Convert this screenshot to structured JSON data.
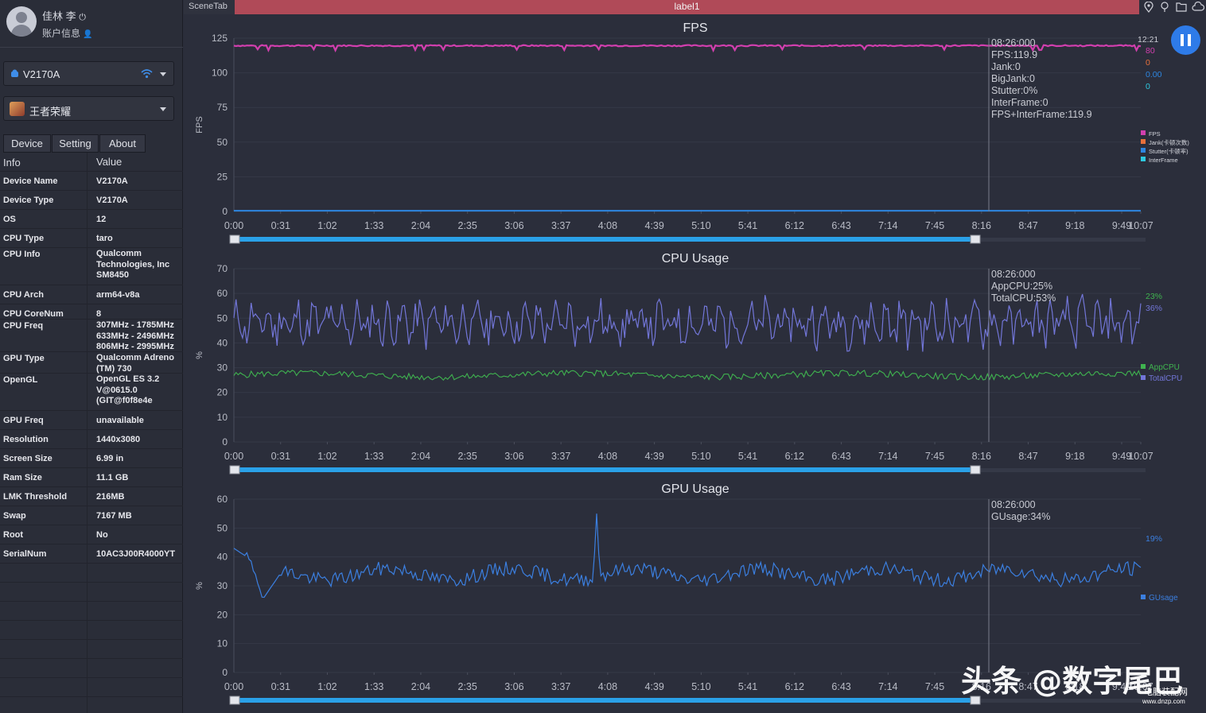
{
  "user": {
    "name": "佳林 李",
    "account_label": "账户信息"
  },
  "device_select": {
    "value": "V2170A"
  },
  "app_select": {
    "value": "王者荣耀"
  },
  "tabs": [
    "Device",
    "Setting",
    "About"
  ],
  "info_table": {
    "headers": [
      "Info",
      "Value"
    ],
    "rows": [
      {
        "k": "Device Name",
        "v": "V2170A"
      },
      {
        "k": "Device Type",
        "v": "V2170A"
      },
      {
        "k": "OS",
        "v": "12"
      },
      {
        "k": "CPU Type",
        "v": "taro"
      },
      {
        "k": "CPU Info",
        "v": "Qualcomm\nTechnologies, Inc\nSM8450"
      },
      {
        "k": "CPU Arch",
        "v": "arm64-v8a"
      },
      {
        "k": "CPU CoreNum",
        "v": "8"
      },
      {
        "k": "CPU Freq",
        "v": "307MHz - 1785MHz\n633MHz - 2496MHz\n806MHz - 2995MHz"
      },
      {
        "k": "GPU Type",
        "v": "Qualcomm Adreno\n(TM) 730"
      },
      {
        "k": "OpenGL",
        "v": "OpenGL ES 3.2\nV@0615.0\n(GIT@f0f8e4e"
      },
      {
        "k": "GPU Freq",
        "v": "unavailable"
      },
      {
        "k": "Resolution",
        "v": "1440x3080"
      },
      {
        "k": "Screen Size",
        "v": "6.99 in"
      },
      {
        "k": "Ram Size",
        "v": "11.1 GB"
      },
      {
        "k": "LMK Threshold",
        "v": "216MB"
      },
      {
        "k": "Swap",
        "v": "7167 MB"
      },
      {
        "k": "Root",
        "v": "No"
      },
      {
        "k": "SerialNum",
        "v": "10AC3J00R4000YT"
      }
    ]
  },
  "topbar": {
    "scene_tab": "SceneTab",
    "label": "label1"
  },
  "colors": {
    "fps": "#d23fae",
    "jank": "#e8703a",
    "stutter": "#2e86e0",
    "interframe": "#2ec9e0",
    "app_cpu": "#3fb34f",
    "total_cpu": "#7276d8",
    "gpu": "#3b7fe0",
    "bg": "#2b2e3b",
    "accent": "#2e7be8"
  },
  "x_ticks": [
    "0:00",
    "0:31",
    "1:02",
    "1:33",
    "2:04",
    "2:35",
    "3:06",
    "3:37",
    "4:08",
    "4:39",
    "5:10",
    "5:41",
    "6:12",
    "6:43",
    "7:14",
    "7:45",
    "8:16",
    "8:47",
    "9:18",
    "9:49",
    "10:07"
  ],
  "cursor_time": "08:26:000",
  "charts": {
    "fps": {
      "title": "FPS",
      "ylabel": "FPS",
      "annotation": "08:26:000\nFPS:119.9\nJank:0\nBigJank:0\nStutter:0%\nInterFrame:0\nFPS+InterFrame:119.9",
      "right_values": [
        "80",
        "0",
        "0.00",
        "0"
      ],
      "time_label": "12:21",
      "legend": [
        "FPS",
        "Jank(卡顿次数)",
        "Stutter(卡顿率)",
        "InterFrame"
      ]
    },
    "cpu": {
      "title": "CPU Usage",
      "ylabel": "%",
      "annotation": "08:26:000\nAppCPU:25%\nTotalCPU:53%",
      "right_values": [
        "23%",
        "36%"
      ],
      "legend": [
        "AppCPU",
        "TotalCPU"
      ]
    },
    "gpu": {
      "title": "GPU Usage",
      "ylabel": "%",
      "annotation": "08:26:000\nGUsage:34%",
      "right_values": [
        "19%"
      ],
      "legend": [
        "GUsage"
      ]
    }
  },
  "chart_data": [
    {
      "type": "line",
      "title": "FPS",
      "ylabel": "FPS",
      "ylim": [
        0,
        125
      ],
      "yticks": [
        0,
        25,
        50,
        75,
        100,
        125
      ],
      "x_range": [
        "0:00",
        "10:07"
      ],
      "series": [
        {
          "name": "FPS",
          "values_approx": 119.9
        },
        {
          "name": "Jank(卡顿次数)",
          "values_approx": 0
        },
        {
          "name": "Stutter(卡顿率)",
          "values_approx": 0
        },
        {
          "name": "InterFrame",
          "values_approx": 0
        }
      ]
    },
    {
      "type": "line",
      "title": "CPU Usage",
      "ylabel": "%",
      "ylim": [
        0,
        70
      ],
      "yticks": [
        0,
        10,
        20,
        30,
        40,
        50,
        60,
        70
      ],
      "x_range": [
        "0:00",
        "10:07"
      ],
      "series": [
        {
          "name": "AppCPU",
          "values_approx": 27
        },
        {
          "name": "TotalCPU",
          "values_approx": 50
        }
      ]
    },
    {
      "type": "line",
      "title": "GPU Usage",
      "ylabel": "%",
      "ylim": [
        0,
        60
      ],
      "yticks": [
        0,
        10,
        20,
        30,
        40,
        50,
        60
      ],
      "x_range": [
        "0:00",
        "10:07"
      ],
      "series": [
        {
          "name": "GUsage",
          "values_approx": 34,
          "peak": 55
        }
      ]
    }
  ],
  "watermark": {
    "text": "头条 @数字尾巴",
    "site": "电脑装配网",
    "url": "www.dnzp.com"
  }
}
